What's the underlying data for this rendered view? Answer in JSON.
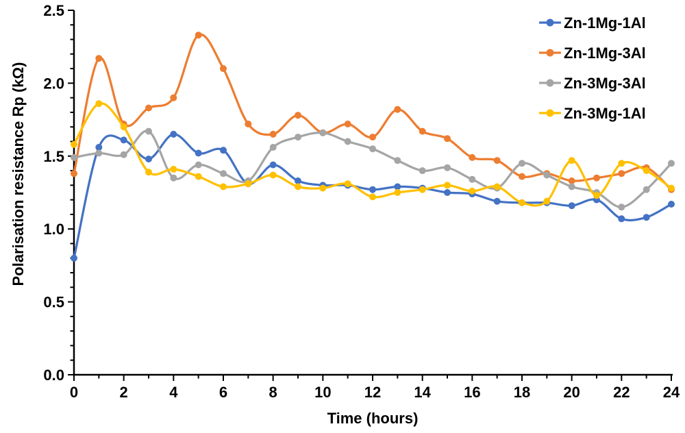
{
  "chart_data": {
    "type": "line",
    "title": "",
    "xlabel": "Time (hours)",
    "ylabel": "Polarisation resistance Rp (kΩ)",
    "x": [
      0,
      1,
      2,
      3,
      4,
      5,
      6,
      7,
      8,
      9,
      10,
      11,
      12,
      13,
      14,
      15,
      16,
      17,
      18,
      19,
      20,
      21,
      22,
      23,
      24
    ],
    "xlim": [
      0,
      24
    ],
    "ylim": [
      0.0,
      2.5
    ],
    "x_tick_labels": [
      "0",
      "2",
      "4",
      "6",
      "8",
      "10",
      "12",
      "14",
      "16",
      "18",
      "20",
      "22",
      "24"
    ],
    "y_tick_labels": [
      "0.0",
      "0.5",
      "1.0",
      "1.5",
      "2.0",
      "2.5"
    ],
    "x_major_step": 2,
    "x_minor_step": 1,
    "y_major_step": 0.5,
    "y_minor_step": 0.1,
    "grid": false,
    "smooth_lines": true,
    "markers": "circle",
    "axis_color": "#000000",
    "text_color": "#000000",
    "legend_position": "top-right",
    "series": [
      {
        "name": "Zn-1Mg-1Al",
        "color": "#4472C4",
        "values": [
          0.8,
          1.56,
          1.61,
          1.48,
          1.65,
          1.52,
          1.54,
          1.31,
          1.44,
          1.33,
          1.3,
          1.3,
          1.27,
          1.29,
          1.28,
          1.25,
          1.24,
          1.19,
          1.18,
          1.18,
          1.16,
          1.2,
          1.07,
          1.08,
          1.17
        ]
      },
      {
        "name": "Zn-1Mg-3Al",
        "color": "#ED7D31",
        "values": [
          1.38,
          2.17,
          1.72,
          1.83,
          1.9,
          2.33,
          2.1,
          1.72,
          1.65,
          1.78,
          1.66,
          1.72,
          1.63,
          1.82,
          1.67,
          1.62,
          1.49,
          1.47,
          1.36,
          1.38,
          1.33,
          1.35,
          1.38,
          1.42,
          1.27
        ]
      },
      {
        "name": "Zn-3Mg-3Al",
        "color": "#A5A5A5",
        "values": [
          1.49,
          1.52,
          1.51,
          1.67,
          1.35,
          1.44,
          1.38,
          1.33,
          1.56,
          1.63,
          1.66,
          1.6,
          1.55,
          1.47,
          1.4,
          1.42,
          1.34,
          1.28,
          1.45,
          1.37,
          1.29,
          1.25,
          1.15,
          1.27,
          1.45
        ]
      },
      {
        "name": "Zn-3Mg-1Al",
        "color": "#FFC000",
        "values": [
          1.58,
          1.86,
          1.7,
          1.39,
          1.41,
          1.36,
          1.29,
          1.31,
          1.37,
          1.29,
          1.28,
          1.31,
          1.22,
          1.25,
          1.27,
          1.3,
          1.26,
          1.29,
          1.18,
          1.19,
          1.47,
          1.23,
          1.45,
          1.4,
          1.28
        ]
      }
    ]
  }
}
